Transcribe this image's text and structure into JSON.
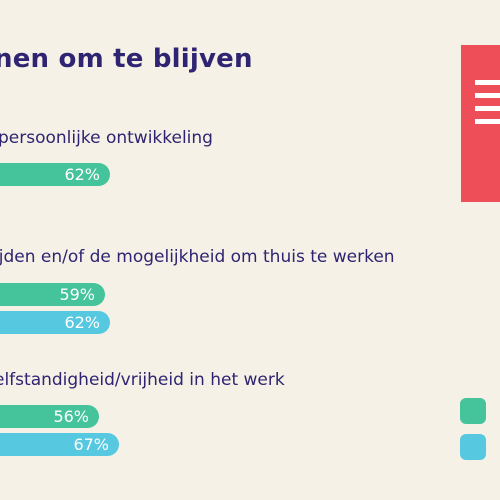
{
  "title": "nen om te blijven",
  "colors": {
    "green": "#45c39b",
    "blue": "#56c8e0",
    "red": "#ee4e58",
    "text": "#2e2472"
  },
  "icons": {
    "document": "document-icon"
  },
  "legend": {
    "items": [
      {
        "color": "#45c39b"
      },
      {
        "color": "#56c8e0"
      }
    ]
  },
  "chart_data": {
    "type": "bar",
    "orientation": "horizontal",
    "title": "nen om te blijven",
    "xlim": [
      0,
      100
    ],
    "groups": [
      {
        "label": "persoonlijke ontwikkeling",
        "bars": [
          {
            "value": 62,
            "label": "62%",
            "color": "#45c39b"
          }
        ]
      },
      {
        "label": "ijden en/of de mogelijkheid om thuis te werken",
        "bars": [
          {
            "value": 59,
            "label": "59%",
            "color": "#45c39b"
          },
          {
            "value": 62,
            "label": "62%",
            "color": "#56c8e0"
          }
        ]
      },
      {
        "label": "elfstandigheid/vrijheid in het werk",
        "bars": [
          {
            "value": 56,
            "label": "56%",
            "color": "#45c39b"
          },
          {
            "value": 67,
            "label": "67%",
            "color": "#56c8e0"
          }
        ]
      }
    ]
  }
}
